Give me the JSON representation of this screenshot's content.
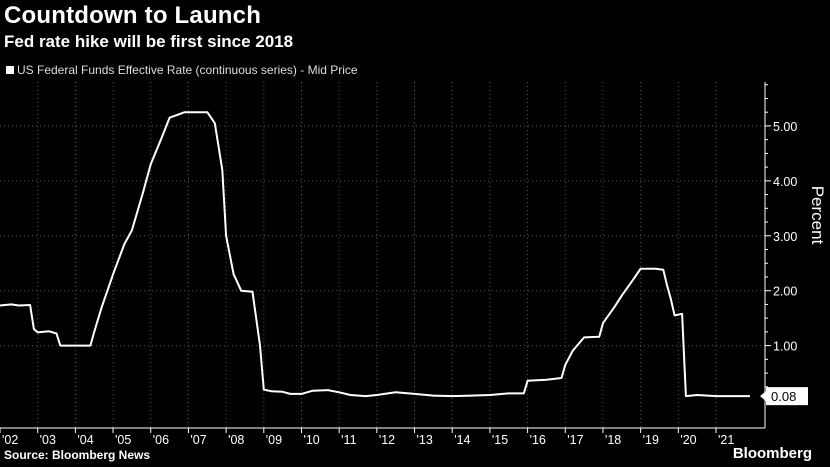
{
  "header": {
    "title": "Countdown to Launch",
    "subtitle": "Fed rate hike will be first since 2018"
  },
  "legend": {
    "label": "US Federal Funds Effective Rate (continuous series) - Mid Price"
  },
  "footer": {
    "source": "Source: Bloomberg News",
    "brand": "Bloomberg"
  },
  "colors": {
    "background": "#000000",
    "line": "#ffffff",
    "grid": "#555555"
  },
  "chart_data": {
    "type": "line",
    "ylabel": "Percent",
    "ylim": [
      -0.5,
      5.8
    ],
    "xlim": [
      2002.0,
      2022.3
    ],
    "yticks": [
      1.0,
      2.0,
      3.0,
      4.0,
      5.0
    ],
    "ytick_labels": [
      "1.00",
      "2.00",
      "3.00",
      "4.00",
      "5.00"
    ],
    "xtick_labels": [
      "'02",
      "'03",
      "'04",
      "'05",
      "'06",
      "'07",
      "'08",
      "'09",
      "'10",
      "'11",
      "'12",
      "'13",
      "'14",
      "'15",
      "'16",
      "'17",
      "'18",
      "'19",
      "'20",
      "'21"
    ],
    "last_value_label": "0.08",
    "last_value": 0.08,
    "grid": true,
    "series": [
      {
        "name": "US Federal Funds Effective Rate (continuous series) - Mid Price",
        "x": [
          2002.0,
          2002.3,
          2002.5,
          2002.8,
          2002.9,
          2003.0,
          2003.3,
          2003.5,
          2003.6,
          2003.9,
          2004.0,
          2004.4,
          2004.5,
          2004.7,
          2005.0,
          2005.3,
          2005.5,
          2005.8,
          2006.0,
          2006.3,
          2006.5,
          2006.9,
          2007.1,
          2007.3,
          2007.5,
          2007.7,
          2007.9,
          2008.0,
          2008.2,
          2008.4,
          2008.7,
          2008.9,
          2009.0,
          2009.2,
          2009.5,
          2009.7,
          2010.0,
          2010.3,
          2010.7,
          2011.0,
          2011.3,
          2011.7,
          2012.0,
          2012.5,
          2013.0,
          2013.5,
          2014.0,
          2014.5,
          2015.0,
          2015.5,
          2015.9,
          2016.0,
          2016.5,
          2016.9,
          2017.0,
          2017.2,
          2017.5,
          2017.9,
          2018.0,
          2018.3,
          2018.5,
          2018.8,
          2019.0,
          2019.4,
          2019.6,
          2019.7,
          2019.8,
          2019.9,
          2020.1,
          2020.2,
          2020.5,
          2021.0,
          2021.5,
          2021.9
        ],
        "y": [
          1.73,
          1.75,
          1.73,
          1.74,
          1.3,
          1.24,
          1.26,
          1.22,
          1.0,
          1.0,
          1.0,
          1.0,
          1.25,
          1.7,
          2.3,
          2.85,
          3.1,
          3.8,
          4.3,
          4.8,
          5.15,
          5.25,
          5.25,
          5.25,
          5.25,
          5.05,
          4.2,
          3.0,
          2.3,
          2.0,
          1.98,
          1.0,
          0.2,
          0.17,
          0.16,
          0.12,
          0.12,
          0.18,
          0.19,
          0.15,
          0.1,
          0.08,
          0.1,
          0.15,
          0.12,
          0.09,
          0.08,
          0.09,
          0.1,
          0.13,
          0.13,
          0.36,
          0.38,
          0.41,
          0.65,
          0.91,
          1.15,
          1.16,
          1.41,
          1.7,
          1.91,
          2.2,
          2.4,
          2.4,
          2.38,
          2.1,
          1.85,
          1.55,
          1.58,
          0.08,
          0.1,
          0.08,
          0.08,
          0.08
        ]
      }
    ]
  }
}
